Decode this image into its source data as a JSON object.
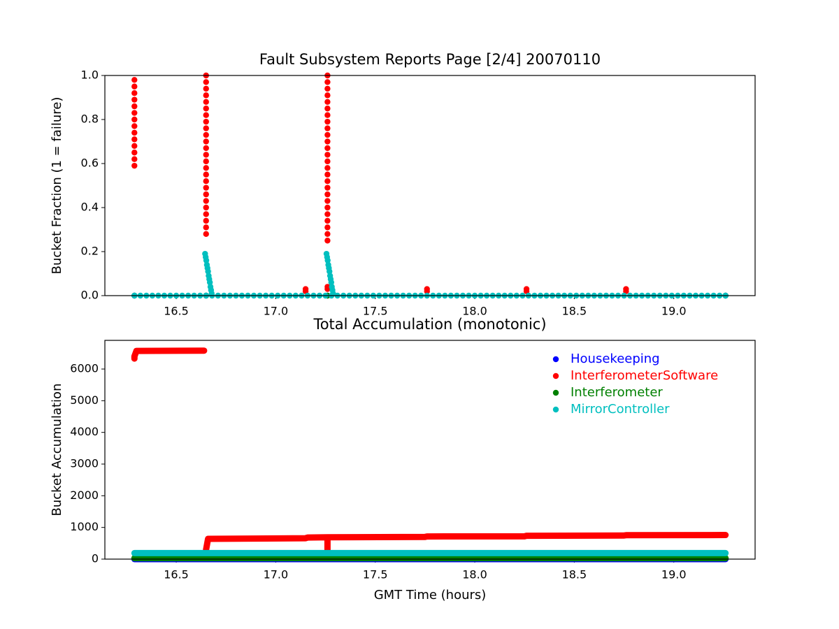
{
  "chart_data": [
    {
      "type": "scatter",
      "title": "Fault Subsystem Reports Page [2/4] 20070110",
      "ylabel": "Bucket Fraction (1 = failure)",
      "xlim": [
        16.1415,
        19.4085
      ],
      "ylim": [
        0,
        1
      ],
      "xticks": [
        16.5,
        {
          "value": 17,
          "label": "17.0"
        },
        17.5,
        {
          "value": 18,
          "label": "18.0"
        },
        18.5,
        {
          "value": 19,
          "label": "19.0"
        }
      ],
      "yticks": [
        {
          "value": 0,
          "label": "0.0"
        },
        0.2,
        0.4,
        0.6,
        0.8,
        {
          "value": 1,
          "label": "1.0"
        }
      ],
      "series": [
        {
          "name": "Housekeeping",
          "color": "#0000ff",
          "x": [
            16.29,
            16.65,
            17.26,
            19.26
          ],
          "values": [
            0,
            0,
            0,
            0
          ]
        },
        {
          "name": "InterferometerSoftware",
          "color": "#ff0000",
          "x": [
            16.29,
            16.29,
            16.29,
            16.29,
            16.29,
            16.29,
            16.29,
            16.29,
            16.29,
            16.29,
            16.29,
            16.29,
            16.29,
            16.29,
            16.65,
            16.65,
            16.65,
            16.65,
            16.65,
            16.65,
            16.65,
            16.65,
            16.65,
            16.65,
            16.65,
            16.65,
            16.65,
            16.65,
            16.65,
            16.65,
            16.65,
            16.65,
            16.65,
            16.65,
            16.65,
            16.65,
            16.65,
            16.65,
            16.65,
            17.26,
            17.26,
            17.26,
            17.26,
            17.26,
            17.26,
            17.26,
            17.26,
            17.26,
            17.26,
            17.26,
            17.26,
            17.26,
            17.26,
            17.26,
            17.26,
            17.26,
            17.26,
            17.26,
            17.26,
            17.26,
            17.26,
            17.26,
            17.26,
            17.26,
            17.26,
            17.15,
            17.15,
            17.26,
            17.26,
            17.76,
            17.76,
            18.26,
            18.26,
            18.76,
            18.76
          ],
          "values": [
            0.59,
            0.62,
            0.65,
            0.68,
            0.71,
            0.74,
            0.77,
            0.8,
            0.83,
            0.86,
            0.89,
            0.92,
            0.95,
            0.98,
            0.28,
            0.31,
            0.34,
            0.37,
            0.4,
            0.43,
            0.46,
            0.49,
            0.52,
            0.55,
            0.58,
            0.61,
            0.64,
            0.67,
            0.7,
            0.73,
            0.76,
            0.79,
            0.82,
            0.85,
            0.88,
            0.91,
            0.94,
            0.97,
            1.0,
            0.25,
            0.28,
            0.31,
            0.34,
            0.37,
            0.4,
            0.43,
            0.46,
            0.49,
            0.52,
            0.55,
            0.58,
            0.61,
            0.64,
            0.67,
            0.7,
            0.73,
            0.76,
            0.79,
            0.82,
            0.85,
            0.88,
            0.91,
            0.94,
            0.97,
            1.0,
            0.02,
            0.03,
            0.03,
            0.04,
            0.02,
            0.03,
            0.02,
            0.03,
            0.02,
            0.03
          ]
        },
        {
          "name": "Interferometer",
          "color": "#008000",
          "x": [
            16.29,
            16.65,
            17.26,
            19.26
          ],
          "values": [
            0,
            0,
            0,
            0
          ]
        },
        {
          "name": "MirrorController",
          "color": "#00bfbf",
          "x": [
            16.29,
            16.32,
            16.35,
            16.38,
            16.41,
            16.44,
            16.47,
            16.5,
            16.53,
            16.56,
            16.59,
            16.62,
            16.65,
            16.68,
            16.71,
            16.74,
            16.77,
            16.8,
            16.83,
            16.86,
            16.89,
            16.92,
            16.95,
            16.98,
            17.01,
            17.04,
            17.07,
            17.1,
            17.13,
            17.16,
            17.19,
            17.22,
            17.25,
            17.28,
            17.31,
            17.34,
            17.37,
            17.4,
            17.43,
            17.46,
            17.49,
            17.52,
            17.55,
            17.58,
            17.61,
            17.64,
            17.67,
            17.7,
            17.73,
            17.76,
            17.79,
            17.82,
            17.85,
            17.88,
            17.91,
            17.94,
            17.97,
            18.0,
            18.03,
            18.06,
            18.09,
            18.12,
            18.15,
            18.18,
            18.21,
            18.24,
            18.27,
            18.3,
            18.33,
            18.36,
            18.39,
            18.42,
            18.45,
            18.48,
            18.51,
            18.54,
            18.57,
            18.6,
            18.63,
            18.66,
            18.69,
            18.72,
            18.75,
            18.78,
            18.81,
            18.84,
            18.87,
            18.9,
            18.93,
            18.96,
            18.99,
            19.02,
            19.05,
            19.08,
            19.11,
            19.14,
            19.17,
            19.2,
            19.23,
            19.26,
            16.645,
            16.648,
            16.651,
            16.654,
            16.657,
            16.66,
            16.663,
            16.666,
            16.669,
            16.672,
            16.675,
            16.678,
            17.255,
            17.258,
            17.261,
            17.264,
            17.267,
            17.27,
            17.273,
            17.276,
            17.279,
            17.282,
            17.285,
            17.288
          ],
          "values": [
            0,
            0,
            0,
            0,
            0,
            0,
            0,
            0,
            0,
            0,
            0,
            0,
            0,
            0,
            0,
            0,
            0,
            0,
            0,
            0,
            0,
            0,
            0,
            0,
            0,
            0,
            0,
            0,
            0,
            0,
            0,
            0,
            0,
            0,
            0,
            0,
            0,
            0,
            0,
            0,
            0,
            0,
            0,
            0,
            0,
            0,
            0,
            0,
            0,
            0,
            0,
            0,
            0,
            0,
            0,
            0,
            0,
            0,
            0,
            0,
            0,
            0,
            0,
            0,
            0,
            0,
            0,
            0,
            0,
            0,
            0,
            0,
            0,
            0,
            0,
            0,
            0,
            0,
            0,
            0,
            0,
            0,
            0,
            0,
            0,
            0,
            0,
            0,
            0,
            0,
            0,
            0,
            0,
            0,
            0,
            0,
            0,
            0,
            0,
            0,
            0.19,
            0.175,
            0.16,
            0.14,
            0.125,
            0.11,
            0.09,
            0.075,
            0.06,
            0.04,
            0.025,
            0.01,
            0.19,
            0.175,
            0.16,
            0.14,
            0.125,
            0.11,
            0.09,
            0.075,
            0.06,
            0.04,
            0.025,
            0.01
          ]
        }
      ]
    },
    {
      "type": "line",
      "title": "Total Accumulation (monotonic)",
      "ylabel": "Bucket Accumulation",
      "xlabel": "GMT Time (hours)",
      "xlim": [
        16.1415,
        19.4085
      ],
      "ylim": [
        0,
        6905
      ],
      "xticks": [
        16.5,
        {
          "value": 17,
          "label": "17.0"
        },
        17.5,
        {
          "value": 18,
          "label": "18.0"
        },
        18.5,
        {
          "value": 19,
          "label": "19.0"
        }
      ],
      "yticks": [
        0,
        1000,
        2000,
        3000,
        4000,
        5000,
        6000
      ],
      "legend": "upper right",
      "series": [
        {
          "name": "Housekeeping",
          "color": "#0000ff",
          "x": [
            16.29,
            19.26
          ],
          "values": [
            0,
            0
          ]
        },
        {
          "name": "InterferometerSoftware",
          "color": "#ff0000",
          "x": [
            16.29,
            16.29,
            16.3,
            16.64,
            16.65,
            16.65,
            16.66,
            17.15,
            17.16,
            17.26,
            17.26,
            17.26,
            17.75,
            17.76,
            18.25,
            18.26,
            18.75,
            18.76,
            19.26
          ],
          "values": [
            6330,
            6400,
            6570,
            6580,
            null,
            300,
            640,
            660,
            680,
            690,
            220,
            690,
            700,
            715,
            720,
            735,
            745,
            755,
            760
          ]
        },
        {
          "name": "Interferometer",
          "color": "#008000",
          "x": [
            16.29,
            19.26
          ],
          "values": [
            30,
            30
          ]
        },
        {
          "name": "MirrorController",
          "color": "#00bfbf",
          "x": [
            16.29,
            19.26
          ],
          "values": [
            190,
            190
          ]
        }
      ]
    }
  ]
}
